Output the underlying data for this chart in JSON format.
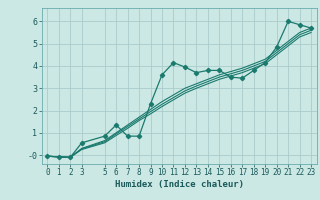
{
  "title": "",
  "xlabel": "Humidex (Indice chaleur)",
  "ylabel": "",
  "xlim": [
    -0.5,
    23.5
  ],
  "ylim": [
    -0.4,
    6.6
  ],
  "xticks": [
    0,
    1,
    2,
    3,
    5,
    6,
    7,
    8,
    9,
    10,
    11,
    12,
    13,
    14,
    15,
    16,
    17,
    18,
    19,
    20,
    21,
    22,
    23
  ],
  "yticks": [
    0,
    1,
    2,
    3,
    4,
    5,
    6
  ],
  "bg_color": "#cce8e4",
  "grid_color": "#aacccc",
  "line_color": "#1a7a6e",
  "series": {
    "scatter_line": {
      "x": [
        0,
        1,
        2,
        3,
        5,
        6,
        7,
        8,
        9,
        10,
        11,
        12,
        13,
        14,
        15,
        16,
        17,
        18,
        19,
        20,
        21,
        22,
        23
      ],
      "y": [
        -0.05,
        -0.08,
        -0.1,
        0.55,
        0.85,
        1.35,
        0.85,
        0.85,
        2.3,
        3.6,
        4.15,
        3.95,
        3.7,
        3.8,
        3.8,
        3.5,
        3.45,
        3.8,
        4.15,
        4.85,
        6.0,
        5.85,
        5.7
      ]
    },
    "smooth_line1": {
      "x": [
        0,
        1,
        2,
        3,
        5,
        6,
        7,
        8,
        9,
        10,
        11,
        12,
        13,
        14,
        15,
        16,
        17,
        18,
        19,
        20,
        21,
        22,
        23
      ],
      "y": [
        -0.05,
        -0.08,
        -0.1,
        0.3,
        0.65,
        1.0,
        1.35,
        1.7,
        2.05,
        2.4,
        2.7,
        3.0,
        3.2,
        3.4,
        3.6,
        3.75,
        3.9,
        4.1,
        4.3,
        4.7,
        5.1,
        5.5,
        5.7
      ]
    },
    "smooth_line2": {
      "x": [
        0,
        1,
        2,
        3,
        5,
        6,
        7,
        8,
        9,
        10,
        11,
        12,
        13,
        14,
        15,
        16,
        17,
        18,
        19,
        20,
        21,
        22,
        23
      ],
      "y": [
        -0.05,
        -0.08,
        -0.1,
        0.28,
        0.6,
        0.95,
        1.28,
        1.62,
        1.95,
        2.28,
        2.58,
        2.88,
        3.1,
        3.3,
        3.5,
        3.65,
        3.8,
        4.0,
        4.2,
        4.6,
        5.0,
        5.4,
        5.6
      ]
    },
    "smooth_line3": {
      "x": [
        0,
        1,
        2,
        3,
        5,
        6,
        7,
        8,
        9,
        10,
        11,
        12,
        13,
        14,
        15,
        16,
        17,
        18,
        19,
        20,
        21,
        22,
        23
      ],
      "y": [
        -0.05,
        -0.08,
        -0.1,
        0.25,
        0.55,
        0.88,
        1.2,
        1.55,
        1.85,
        2.18,
        2.48,
        2.78,
        3.0,
        3.2,
        3.4,
        3.55,
        3.7,
        3.9,
        4.1,
        4.5,
        4.9,
        5.3,
        5.5
      ]
    }
  }
}
